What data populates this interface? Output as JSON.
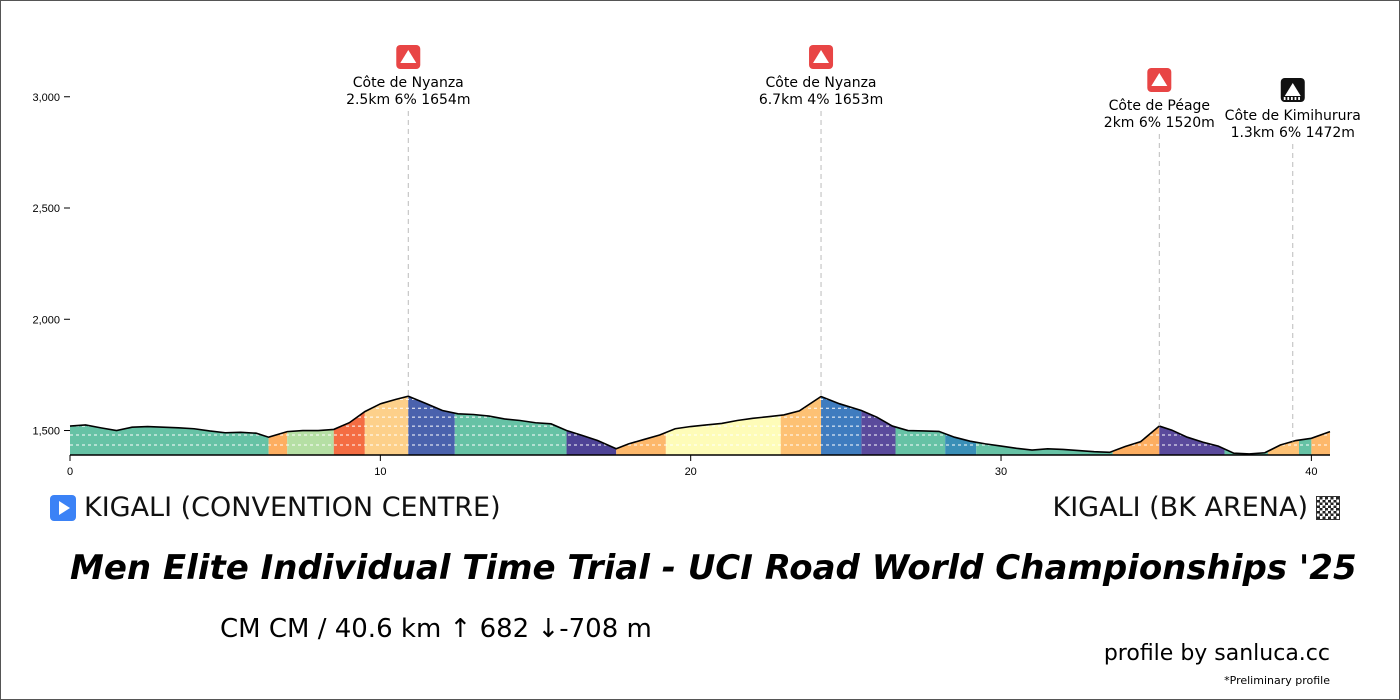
{
  "chart_data": {
    "type": "area",
    "title": "Men Elite Individual Time Trial - UCI Road World Championships '25",
    "xlabel": "",
    "ylabel": "",
    "xlim": [
      0,
      40.6
    ],
    "ylim": [
      1390,
      3300
    ],
    "x_ticks": [
      0,
      10,
      20,
      30,
      40
    ],
    "x_tick_labels": [
      "0",
      "10",
      "20",
      "30",
      "40"
    ],
    "y_ticks": [
      1500,
      2000,
      2500,
      3000
    ],
    "y_tick_labels": [
      "1,500",
      "2,000",
      "2,500",
      "3,000"
    ],
    "grid": false,
    "profile": {
      "x": [
        0,
        0.5,
        1.0,
        1.5,
        2.0,
        2.5,
        3.0,
        3.5,
        4.0,
        4.5,
        5.0,
        5.5,
        6.0,
        6.4,
        7.0,
        7.5,
        8.0,
        8.5,
        9.0,
        9.5,
        10.0,
        10.5,
        10.9,
        11.5,
        12.0,
        12.5,
        13.0,
        13.5,
        14.0,
        14.5,
        15.0,
        15.5,
        16.0,
        16.5,
        17.0,
        17.6,
        18.0,
        18.5,
        19.0,
        19.5,
        20.0,
        20.5,
        21.0,
        21.5,
        22.0,
        22.5,
        23.0,
        23.5,
        24.2,
        24.8,
        25.5,
        26.0,
        26.5,
        27.0,
        27.5,
        28.0,
        28.5,
        29.0,
        29.5,
        30.0,
        30.5,
        31.0,
        31.5,
        32.0,
        32.5,
        33.0,
        33.5,
        34.0,
        34.5,
        35.1,
        35.5,
        36.0,
        36.5,
        37.0,
        37.5,
        38.0,
        38.5,
        39.0,
        39.5,
        40.0,
        40.6
      ],
      "y": [
        1520,
        1525,
        1512,
        1500,
        1515,
        1518,
        1515,
        1512,
        1508,
        1498,
        1490,
        1492,
        1488,
        1470,
        1495,
        1500,
        1500,
        1505,
        1535,
        1585,
        1620,
        1640,
        1654,
        1620,
        1590,
        1575,
        1572,
        1565,
        1552,
        1545,
        1535,
        1530,
        1500,
        1478,
        1455,
        1418,
        1440,
        1460,
        1480,
        1508,
        1518,
        1525,
        1532,
        1545,
        1555,
        1562,
        1570,
        1588,
        1653,
        1620,
        1590,
        1560,
        1520,
        1500,
        1498,
        1496,
        1470,
        1452,
        1440,
        1430,
        1420,
        1412,
        1418,
        1415,
        1410,
        1405,
        1402,
        1428,
        1450,
        1520,
        1502,
        1470,
        1448,
        1430,
        1398,
        1395,
        1400,
        1435,
        1455,
        1465,
        1495
      ]
    },
    "gradient_segments": [
      {
        "from": 0,
        "to": 6.4,
        "color": "#66c2a5"
      },
      {
        "from": 6.4,
        "to": 7.0,
        "color": "#fdae61"
      },
      {
        "from": 7.0,
        "to": 8.5,
        "color": "#b5dfa4"
      },
      {
        "from": 8.5,
        "to": 9.5,
        "color": "#f46d43"
      },
      {
        "from": 9.5,
        "to": 10.9,
        "color": "#fdd08a"
      },
      {
        "from": 10.9,
        "to": 12.4,
        "color": "#4a62ad"
      },
      {
        "from": 12.4,
        "to": 16.0,
        "color": "#66c2a5"
      },
      {
        "from": 16.0,
        "to": 17.6,
        "color": "#4e4396"
      },
      {
        "from": 17.6,
        "to": 19.2,
        "color": "#fdb86b"
      },
      {
        "from": 19.2,
        "to": 22.9,
        "color": "#fefcb8"
      },
      {
        "from": 22.9,
        "to": 24.2,
        "color": "#fdc174"
      },
      {
        "from": 24.2,
        "to": 25.5,
        "color": "#3f7cbf"
      },
      {
        "from": 25.5,
        "to": 26.6,
        "color": "#5a4a9c"
      },
      {
        "from": 26.6,
        "to": 28.2,
        "color": "#66c2a5"
      },
      {
        "from": 28.2,
        "to": 29.2,
        "color": "#3a8fb7"
      },
      {
        "from": 29.2,
        "to": 33.6,
        "color": "#66c2a5"
      },
      {
        "from": 33.6,
        "to": 35.1,
        "color": "#fdae61"
      },
      {
        "from": 35.1,
        "to": 37.2,
        "color": "#5a4a9c"
      },
      {
        "from": 37.2,
        "to": 38.6,
        "color": "#66c2a5"
      },
      {
        "from": 38.6,
        "to": 39.6,
        "color": "#fdc174"
      },
      {
        "from": 39.6,
        "to": 40.0,
        "color": "#66c2a5"
      },
      {
        "from": 40.0,
        "to": 40.6,
        "color": "#fdb86b"
      }
    ],
    "annotations": [
      {
        "x": 10.9,
        "name": "Côte de Nyanza",
        "stats": "2.5km 6% 1654m",
        "icon": "red-climb-icon",
        "icon_color": "#e84545"
      },
      {
        "x": 24.2,
        "name": "Côte de Nyanza",
        "stats": "6.7km 4% 1653m",
        "icon": "red-climb-icon",
        "icon_color": "#e84545"
      },
      {
        "x": 35.1,
        "name": "Côte de Péage",
        "stats": "2km 6% 1520m",
        "icon": "red-climb-icon",
        "icon_color": "#e84545"
      },
      {
        "x": 39.4,
        "name": "Côte de Kimihurura",
        "stats": "1.3km 6% 1472m",
        "icon": "black-finish-climb-icon",
        "icon_color": "#111111"
      }
    ]
  },
  "route": {
    "start": "KIGALI (CONVENTION CENTRE)",
    "finish": "KIGALI (BK ARENA)",
    "start_icon": "play-icon",
    "finish_icon": "checkered-flag-icon"
  },
  "title": "Men Elite Individual Time Trial - UCI Road World Championships '25",
  "subinfo": "CM CM / 40.6 km  ↑ 682 ↓-708 m",
  "credit": "profile by sanluca.cc",
  "note": "*Preliminary profile"
}
